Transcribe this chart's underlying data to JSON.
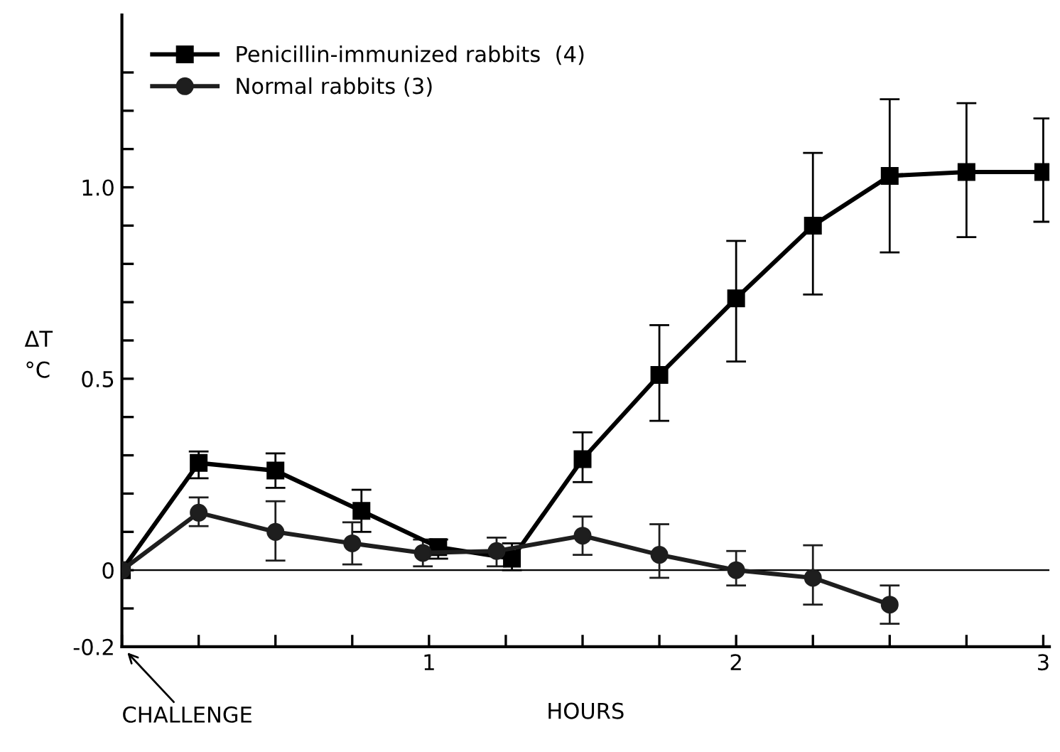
{
  "chart_data": {
    "type": "line",
    "xlabel": "HOURS",
    "ylabel": "ΔT\n°C",
    "x": [
      0,
      0.25,
      0.5,
      0.78,
      1.03,
      1.27,
      1.5,
      1.75,
      2.0,
      2.25,
      2.5,
      2.75,
      3.0
    ],
    "series": [
      {
        "name": "Penicillin-immunized rabbits  (4)",
        "color": "#000000",
        "marker": "square",
        "values": [
          0,
          0.28,
          0.26,
          0.155,
          0.06,
          0.03,
          0.29,
          0.51,
          0.71,
          0.9,
          1.03,
          1.04,
          1.04
        ],
        "errors": [
          null,
          [
            0.24,
            0.31
          ],
          [
            0.215,
            0.305
          ],
          [
            0.1,
            0.21
          ],
          [
            0.03,
            0.08
          ],
          [
            0.0,
            0.07
          ],
          [
            0.23,
            0.36
          ],
          [
            0.39,
            0.64
          ],
          [
            0.545,
            0.86
          ],
          [
            0.72,
            1.09
          ],
          [
            0.83,
            1.23
          ],
          [
            0.87,
            1.22
          ],
          [
            0.91,
            1.18
          ]
        ]
      },
      {
        "name": "Normal rabbits (3)",
        "color": "#1e1e1e",
        "marker": "circle",
        "x": [
          0,
          0.25,
          0.5,
          0.75,
          0.98,
          1.22,
          1.5,
          1.75,
          2.0,
          2.25,
          2.5
        ],
        "values": [
          0,
          0.15,
          0.1,
          0.07,
          0.045,
          0.05,
          0.09,
          0.04,
          0.0,
          -0.02,
          -0.09
        ],
        "errors": [
          null,
          [
            0.115,
            0.19
          ],
          [
            0.025,
            0.18
          ],
          [
            0.015,
            0.125
          ],
          [
            0.01,
            0.08
          ],
          [
            0.01,
            0.085
          ],
          [
            0.04,
            0.14
          ],
          [
            -0.02,
            0.12
          ],
          [
            -0.04,
            0.05
          ],
          [
            -0.09,
            0.065
          ],
          [
            -0.14,
            -0.04
          ]
        ]
      }
    ],
    "xlim": [
      0,
      3.02
    ],
    "ylim": [
      -0.2,
      1.45
    ],
    "xticks": [
      {
        "value": 0,
        "label": null
      },
      {
        "value": 0.25,
        "label": null
      },
      {
        "value": 0.5,
        "label": null
      },
      {
        "value": 0.75,
        "label": null
      },
      1,
      {
        "value": 1.25,
        "label": null
      },
      {
        "value": 1.5,
        "label": null
      },
      {
        "value": 1.75,
        "label": null
      },
      2,
      {
        "value": 2.25,
        "label": null
      },
      {
        "value": 2.5,
        "label": null
      },
      {
        "value": 2.75,
        "label": null
      },
      3
    ],
    "yticks": [
      {
        "value": -0.2,
        "label": "-0.2"
      },
      {
        "value": -0.1,
        "label": null
      },
      0,
      {
        "value": 0.1,
        "label": null
      },
      {
        "value": 0.2,
        "label": null
      },
      {
        "value": 0.3,
        "label": null
      },
      {
        "value": 0.4,
        "label": null
      },
      0.5,
      {
        "value": 0.6,
        "label": null
      },
      {
        "value": 0.7,
        "label": null
      },
      {
        "value": 0.8,
        "label": null
      },
      {
        "value": 0.9,
        "label": null
      },
      {
        "value": 1.0,
        "label": "1.0"
      },
      {
        "value": 1.1,
        "label": null
      },
      {
        "value": 1.2,
        "label": null
      },
      {
        "value": 1.3,
        "label": null
      }
    ],
    "ref_lines": [
      {
        "axis": "y",
        "value": 0,
        "color": "#000000"
      }
    ],
    "annotations": [
      "CHALLENGE"
    ],
    "legend": "top left",
    "grid": false,
    "line_style": "solid"
  }
}
